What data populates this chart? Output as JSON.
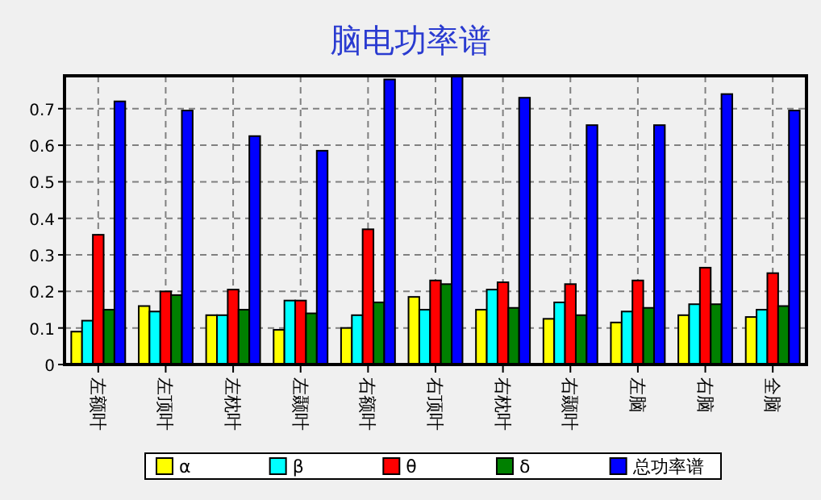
{
  "chart_data": {
    "type": "bar",
    "title": "脑电功率谱",
    "categories": [
      "左额叶",
      "左顶叶",
      "左枕叶",
      "左颞叶",
      "右额叶",
      "右顶叶",
      "右枕叶",
      "右颞叶",
      "左脑",
      "右脑",
      "全脑"
    ],
    "series": [
      {
        "name": "α",
        "color": "#ffff00",
        "values": [
          0.09,
          0.16,
          0.135,
          0.095,
          0.1,
          0.185,
          0.15,
          0.125,
          0.115,
          0.135,
          0.13
        ]
      },
      {
        "name": "β",
        "color": "#00ffff",
        "values": [
          0.12,
          0.145,
          0.135,
          0.175,
          0.135,
          0.15,
          0.205,
          0.17,
          0.145,
          0.165,
          0.15
        ]
      },
      {
        "name": "θ",
        "color": "#ff0000",
        "values": [
          0.355,
          0.2,
          0.205,
          0.175,
          0.37,
          0.23,
          0.225,
          0.22,
          0.23,
          0.265,
          0.25
        ]
      },
      {
        "name": "δ",
        "color": "#008000",
        "values": [
          0.15,
          0.19,
          0.15,
          0.14,
          0.17,
          0.22,
          0.155,
          0.135,
          0.155,
          0.165,
          0.16
        ]
      },
      {
        "name": "总功率谱",
        "color": "#0000ff",
        "values": [
          0.72,
          0.695,
          0.625,
          0.585,
          0.78,
          0.79,
          0.73,
          0.655,
          0.655,
          0.74,
          0.695
        ]
      }
    ],
    "ylim": [
      0,
      0.79
    ],
    "yticks": [
      0,
      0.1,
      0.2,
      0.3,
      0.4,
      0.5,
      0.6,
      0.7
    ],
    "grid": true,
    "legend": "bottom"
  }
}
